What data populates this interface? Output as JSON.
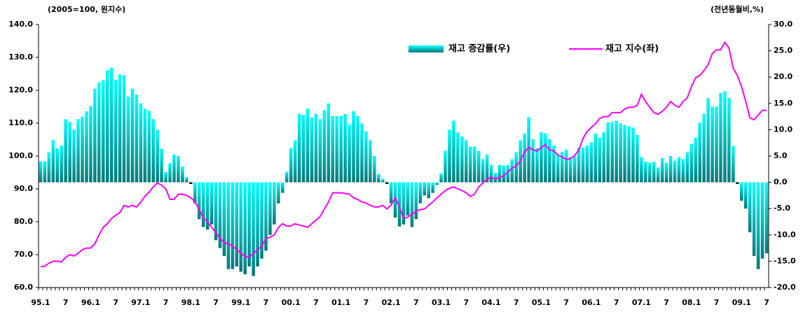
{
  "chart_data": {
    "type": "bar-line",
    "left_axis_label": "(2005=100, 원지수)",
    "right_axis_label": "(전년동월비,%)",
    "categories": [
      "95.1",
      null,
      null,
      null,
      null,
      null,
      "7",
      null,
      null,
      null,
      null,
      null,
      "96.1",
      null,
      null,
      null,
      null,
      null,
      "7",
      null,
      null,
      null,
      null,
      null,
      "97.1",
      null,
      null,
      null,
      null,
      null,
      "7",
      null,
      null,
      null,
      null,
      null,
      "98.1",
      null,
      null,
      null,
      null,
      null,
      "7",
      null,
      null,
      null,
      null,
      null,
      "99.1",
      null,
      null,
      null,
      null,
      null,
      "7",
      null,
      null,
      null,
      null,
      null,
      "00.1",
      null,
      null,
      null,
      null,
      null,
      "7",
      null,
      null,
      null,
      null,
      null,
      "01.1",
      null,
      null,
      null,
      null,
      null,
      "7",
      null,
      null,
      null,
      null,
      null,
      "02.1",
      null,
      null,
      null,
      null,
      null,
      "7",
      null,
      null,
      null,
      null,
      null,
      "03.1",
      null,
      null,
      null,
      null,
      null,
      "7",
      null,
      null,
      null,
      null,
      null,
      "04.1",
      null,
      null,
      null,
      null,
      null,
      "7",
      null,
      null,
      null,
      null,
      null,
      "05.1",
      null,
      null,
      null,
      null,
      null,
      "7",
      null,
      null,
      null,
      null,
      null,
      "06.1",
      null,
      null,
      null,
      null,
      null,
      "7",
      null,
      null,
      null,
      null,
      null,
      "07.1",
      null,
      null,
      null,
      null,
      null,
      "7",
      null,
      null,
      null,
      null,
      null,
      "08.1",
      null,
      null,
      null,
      null,
      null,
      "7",
      null,
      null,
      null,
      null,
      null,
      "09.1",
      null,
      null,
      null,
      null,
      null,
      "7"
    ],
    "series": [
      {
        "name": "재고 증감률(우)",
        "type": "bar",
        "axis": "y2",
        "color": "#00ffff",
        "color_dark": "#007878",
        "values": [
          4,
          4,
          5.7,
          8,
          6.5,
          7,
          12,
          11.5,
          10,
          12,
          12.5,
          13.5,
          14.5,
          17.8,
          19,
          19.4,
          21.3,
          21.8,
          19.5,
          20.5,
          20.4,
          16.3,
          17.8,
          16.7,
          15,
          14,
          13.6,
          12,
          10,
          6.4,
          2,
          3.6,
          5.3,
          5,
          3,
          1,
          -0.3,
          -4,
          -7,
          -8.5,
          -9,
          -8,
          -11,
          -12.5,
          -14,
          -16.5,
          -16.5,
          -16,
          -17,
          -17.5,
          -16,
          -17.8,
          -16,
          -14.5,
          -13,
          -10,
          -8,
          -4,
          -2,
          2,
          6.5,
          8,
          13,
          12.8,
          14,
          12.3,
          13,
          12,
          13.7,
          15,
          12.6,
          12.6,
          12.6,
          13,
          11,
          13.5,
          12.6,
          11.2,
          9.7,
          8,
          5,
          1.6,
          0.6,
          -0.3,
          -4,
          -6.7,
          -8.4,
          -8,
          -6.3,
          -8.5,
          -7,
          -4,
          -2.5,
          -3,
          -2,
          -0.5,
          1.7,
          6,
          10,
          11.7,
          9.5,
          8.7,
          8,
          6.8,
          6.8,
          6,
          4.4,
          5.3,
          3.3,
          1.8,
          3.3,
          3.2,
          3.3,
          4.4,
          5.7,
          8,
          9.3,
          12.4,
          8.2,
          6.5,
          9.5,
          9.3,
          8.2,
          7,
          5.3,
          5.8,
          6.2,
          4.8,
          5,
          6.6,
          6.6,
          7,
          7.6,
          9.3,
          8.5,
          9.5,
          11.4,
          11.5,
          11.7,
          11.2,
          10.9,
          10.6,
          10.4,
          9,
          4.8,
          3.9,
          3.7,
          3.9,
          2.8,
          4.6,
          3.7,
          5,
          4.1,
          4.8,
          4.4,
          5.7,
          7.3,
          8.5,
          11.3,
          13,
          16,
          14.4,
          14.4,
          17,
          17.3,
          16,
          6.9,
          -0.3,
          -3.5,
          -5,
          -9.5,
          -14,
          -16.5,
          -14.5,
          -13.5
        ]
      },
      {
        "name": "재고 지수(좌)",
        "type": "line",
        "axis": "y",
        "color": "#ff00ff",
        "values": [
          66.3,
          66.5,
          67.4,
          68,
          68,
          67.8,
          69.2,
          70,
          69.6,
          70.4,
          71.5,
          72,
          72,
          73.3,
          76,
          78.3,
          79.4,
          81,
          82,
          82.8,
          85,
          84.5,
          85,
          84.5,
          86,
          87.7,
          89,
          90.6,
          91.8,
          91.1,
          90,
          86.8,
          86.8,
          88.4,
          88.4,
          88,
          87.3,
          86,
          83.9,
          81,
          80,
          78.3,
          76.7,
          74.9,
          73.7,
          73.3,
          72.6,
          71.5,
          70.4,
          69.5,
          69.2,
          70.4,
          71.5,
          72.6,
          74.9,
          75.3,
          76,
          78.3,
          79.4,
          78.7,
          78.7,
          79.4,
          79,
          78.7,
          78.3,
          79.4,
          80.5,
          81.6,
          83.9,
          86,
          88.8,
          88.8,
          88.8,
          88.6,
          88.4,
          87.3,
          86.8,
          86,
          85.7,
          85,
          84.5,
          84.5,
          85,
          83.9,
          85,
          87.3,
          84.5,
          81,
          81.4,
          82.3,
          83.2,
          83.7,
          83.9,
          85,
          86,
          87.3,
          88.4,
          89.5,
          90.2,
          90.6,
          90,
          89.5,
          88.8,
          87.7,
          88.4,
          90.6,
          91.8,
          92.9,
          93.6,
          92.9,
          93.6,
          94,
          95.2,
          96.3,
          97,
          98.5,
          101.2,
          102.6,
          101.9,
          101.5,
          102.6,
          103.5,
          101.9,
          101.5,
          100.3,
          99.7,
          99,
          99.2,
          100.1,
          101.9,
          105.3,
          107.5,
          108.7,
          109.8,
          111.4,
          112,
          112,
          113.2,
          113.2,
          113.2,
          114.3,
          114.8,
          114.8,
          115.4,
          118.8,
          116.6,
          114.8,
          113.2,
          112.7,
          113.6,
          114.8,
          116.6,
          115.4,
          114.8,
          116.6,
          117.7,
          121.1,
          123.8,
          124.5,
          126,
          127.8,
          131.2,
          132.3,
          132.3,
          134.6,
          132.8,
          126.7,
          124.5,
          121.1,
          116.6,
          111.6,
          111,
          112.5,
          113.9,
          113.9
        ]
      }
    ],
    "ylim": [
      60,
      140
    ],
    "yticks": [
      {
        "value": 60,
        "label": "60.0"
      },
      {
        "value": 70,
        "label": "70.0"
      },
      {
        "value": 80,
        "label": "80.0"
      },
      {
        "value": 90,
        "label": "90.0"
      },
      {
        "value": 100,
        "label": "100.0"
      },
      {
        "value": 110,
        "label": "110.0"
      },
      {
        "value": 120,
        "label": "120.0"
      },
      {
        "value": 130,
        "label": "130.0"
      },
      {
        "value": 140,
        "label": "140.0"
      }
    ],
    "y2lim": [
      -20,
      30
    ],
    "y2ticks": [
      {
        "value": -20,
        "label": "-20.0"
      },
      {
        "value": -15,
        "label": "-15.0"
      },
      {
        "value": -10,
        "label": "-10.0"
      },
      {
        "value": -5,
        "label": "-5.0"
      },
      {
        "value": 0,
        "label": "0.0"
      },
      {
        "value": 5,
        "label": "5.0"
      },
      {
        "value": 10,
        "label": "10.0"
      },
      {
        "value": 15,
        "label": "15.0"
      },
      {
        "value": 20,
        "label": "20.0"
      },
      {
        "value": 25,
        "label": "25.0"
      },
      {
        "value": 30,
        "label": "30.0"
      }
    ],
    "grid": false
  }
}
